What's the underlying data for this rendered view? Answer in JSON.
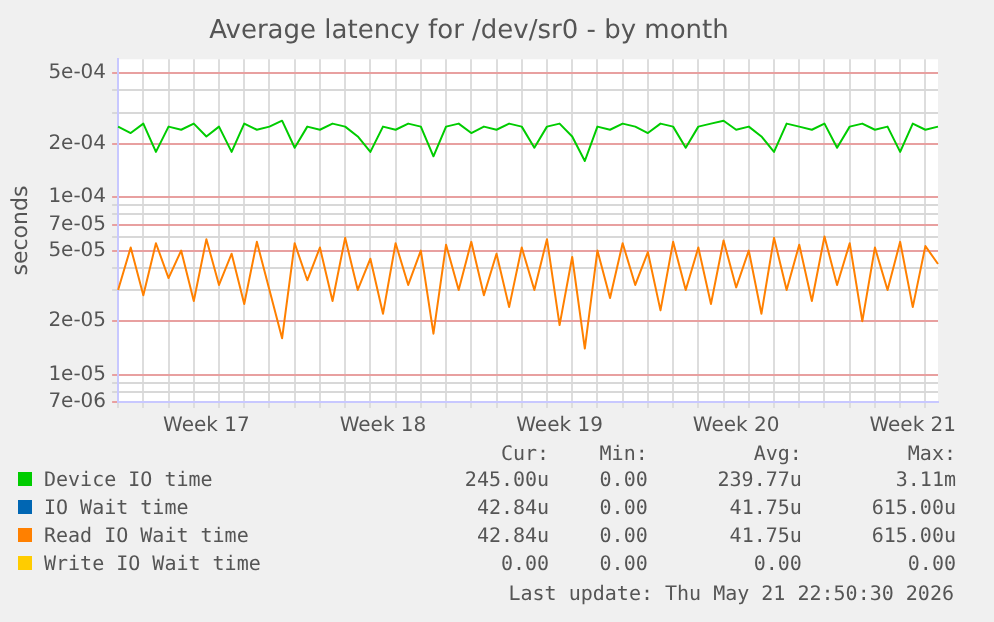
{
  "chart_data": {
    "type": "line",
    "title": "Average latency for /dev/sr0 - by month",
    "ylabel": "seconds",
    "log": "y",
    "grid": true,
    "legend": "bottom",
    "marker": "none",
    "line_style": "solid",
    "categories": [
      null,
      null,
      null,
      null,
      null,
      null,
      null,
      "Week 17",
      null,
      null,
      null,
      null,
      null,
      null,
      null,
      null,
      null,
      null,
      null,
      null,
      null,
      "Week 18",
      null,
      null,
      null,
      null,
      null,
      null,
      null,
      null,
      null,
      null,
      null,
      null,
      null,
      "Week 19",
      null,
      null,
      null,
      null,
      null,
      null,
      null,
      null,
      null,
      null,
      null,
      null,
      null,
      "Week 20",
      null,
      null,
      null,
      null,
      null,
      null,
      null,
      null,
      null,
      null,
      null,
      null,
      null,
      "Week 21",
      null,
      null
    ],
    "ylim": [
      7e-06,
      0.0006
    ],
    "yticks": [
      {
        "value": 7e-06,
        "label": "7e-06"
      },
      {
        "value": 8e-06,
        "label": null
      },
      {
        "value": 9e-06,
        "label": null
      },
      {
        "value": 1e-05,
        "label": "1e-05"
      },
      {
        "value": 2e-05,
        "label": "2e-05"
      },
      {
        "value": 3e-05,
        "label": null
      },
      {
        "value": 4e-05,
        "label": null
      },
      {
        "value": 5e-05,
        "label": "5e-05"
      },
      {
        "value": 6e-05,
        "label": null
      },
      {
        "value": 7e-05,
        "label": "7e-05"
      },
      {
        "value": 8e-05,
        "label": null
      },
      {
        "value": 9e-05,
        "label": null
      },
      {
        "value": 0.0001,
        "label": "1e-04"
      },
      {
        "value": 0.0002,
        "label": "2e-04"
      },
      {
        "value": 0.0003,
        "label": null
      },
      {
        "value": 0.0004,
        "label": null
      },
      {
        "value": 0.0005,
        "label": "5e-04"
      }
    ],
    "series": [
      {
        "name": "Device IO time",
        "color": "#00cc00",
        "values": [
          0.00025,
          0.00023,
          0.00026,
          0.00018,
          0.00025,
          0.00024,
          0.00026,
          0.00022,
          0.00025,
          0.00018,
          0.00026,
          0.00024,
          0.00025,
          0.00027,
          0.00019,
          0.00025,
          0.00024,
          0.00026,
          0.00025,
          0.00022,
          0.00018,
          0.00025,
          0.00024,
          0.00026,
          0.00025,
          0.00017,
          0.00025,
          0.00026,
          0.00023,
          0.00025,
          0.00024,
          0.00026,
          0.00025,
          0.00019,
          0.00025,
          0.00026,
          0.00022,
          0.00016,
          0.00025,
          0.00024,
          0.00026,
          0.00025,
          0.00023,
          0.00026,
          0.00025,
          0.00019,
          0.00025,
          0.00026,
          0.00027,
          0.00024,
          0.00025,
          0.00022,
          0.00018,
          0.00026,
          0.00025,
          0.00024,
          0.00026,
          0.00019,
          0.00025,
          0.00026,
          0.00024,
          0.00025,
          0.00018,
          0.00026,
          0.00024,
          0.00025
        ]
      },
      {
        "name": "IO Wait time",
        "color": "#0066b3",
        "values": [
          null,
          null,
          null,
          null,
          null,
          null,
          null,
          null,
          null,
          null,
          null,
          null,
          null,
          null,
          null,
          null,
          null,
          null,
          null,
          null,
          null,
          null,
          null,
          null,
          null,
          null,
          null,
          null,
          null,
          null,
          null,
          null,
          null,
          null,
          null,
          null,
          null,
          null,
          null,
          null,
          null,
          null,
          null,
          null,
          null,
          null,
          null,
          null,
          null,
          null,
          null,
          null,
          null,
          null,
          null,
          null,
          null,
          null,
          null,
          null,
          null,
          null,
          null,
          null,
          null,
          null
        ]
      },
      {
        "name": "Read IO Wait time",
        "color": "#ff8000",
        "values": [
          3e-05,
          5.2e-05,
          2.8e-05,
          5.5e-05,
          3.5e-05,
          5e-05,
          2.6e-05,
          5.8e-05,
          3.2e-05,
          4.8e-05,
          2.5e-05,
          5.6e-05,
          3e-05,
          1.6e-05,
          5.5e-05,
          3.4e-05,
          5.2e-05,
          2.6e-05,
          5.9e-05,
          3e-05,
          4.5e-05,
          2.2e-05,
          5.5e-05,
          3.2e-05,
          5e-05,
          1.7e-05,
          5.4e-05,
          3e-05,
          5.6e-05,
          2.8e-05,
          4.8e-05,
          2.4e-05,
          5.2e-05,
          3e-05,
          5.8e-05,
          1.9e-05,
          4.6e-05,
          1.4e-05,
          5e-05,
          2.7e-05,
          5.5e-05,
          3.2e-05,
          4.9e-05,
          2.3e-05,
          5.6e-05,
          3e-05,
          5.2e-05,
          2.5e-05,
          5.7e-05,
          3.1e-05,
          5e-05,
          2.2e-05,
          5.9e-05,
          3e-05,
          5.4e-05,
          2.6e-05,
          6e-05,
          3.2e-05,
          5.5e-05,
          2e-05,
          5.2e-05,
          3e-05,
          5.6e-05,
          2.4e-05,
          5.3e-05,
          4.2e-05
        ]
      },
      {
        "name": "Write IO Wait time",
        "color": "#ffcc00",
        "values": [
          null,
          null,
          null,
          null,
          null,
          null,
          null,
          null,
          null,
          null,
          null,
          null,
          null,
          null,
          null,
          null,
          null,
          null,
          null,
          null,
          null,
          null,
          null,
          null,
          null,
          null,
          null,
          null,
          null,
          null,
          null,
          null,
          null,
          null,
          null,
          null,
          null,
          null,
          null,
          null,
          null,
          null,
          null,
          null,
          null,
          null,
          null,
          null,
          null,
          null,
          null,
          null,
          null,
          null,
          null,
          null,
          null,
          null,
          null,
          null,
          null,
          null,
          null,
          null,
          null,
          null
        ]
      }
    ],
    "annotations": [
      "Cur:",
      "Min:",
      "Avg:",
      "Max:",
      "245.00u",
      "0.00",
      "239.77u",
      "3.11m",
      "42.84u",
      "0.00",
      "41.75u",
      "615.00u",
      "42.84u",
      "0.00",
      "41.75u",
      "615.00u",
      "0.00",
      "0.00",
      "0.00",
      "0.00",
      "Last update: Thu May 21 22:50:30 2026"
    ]
  }
}
